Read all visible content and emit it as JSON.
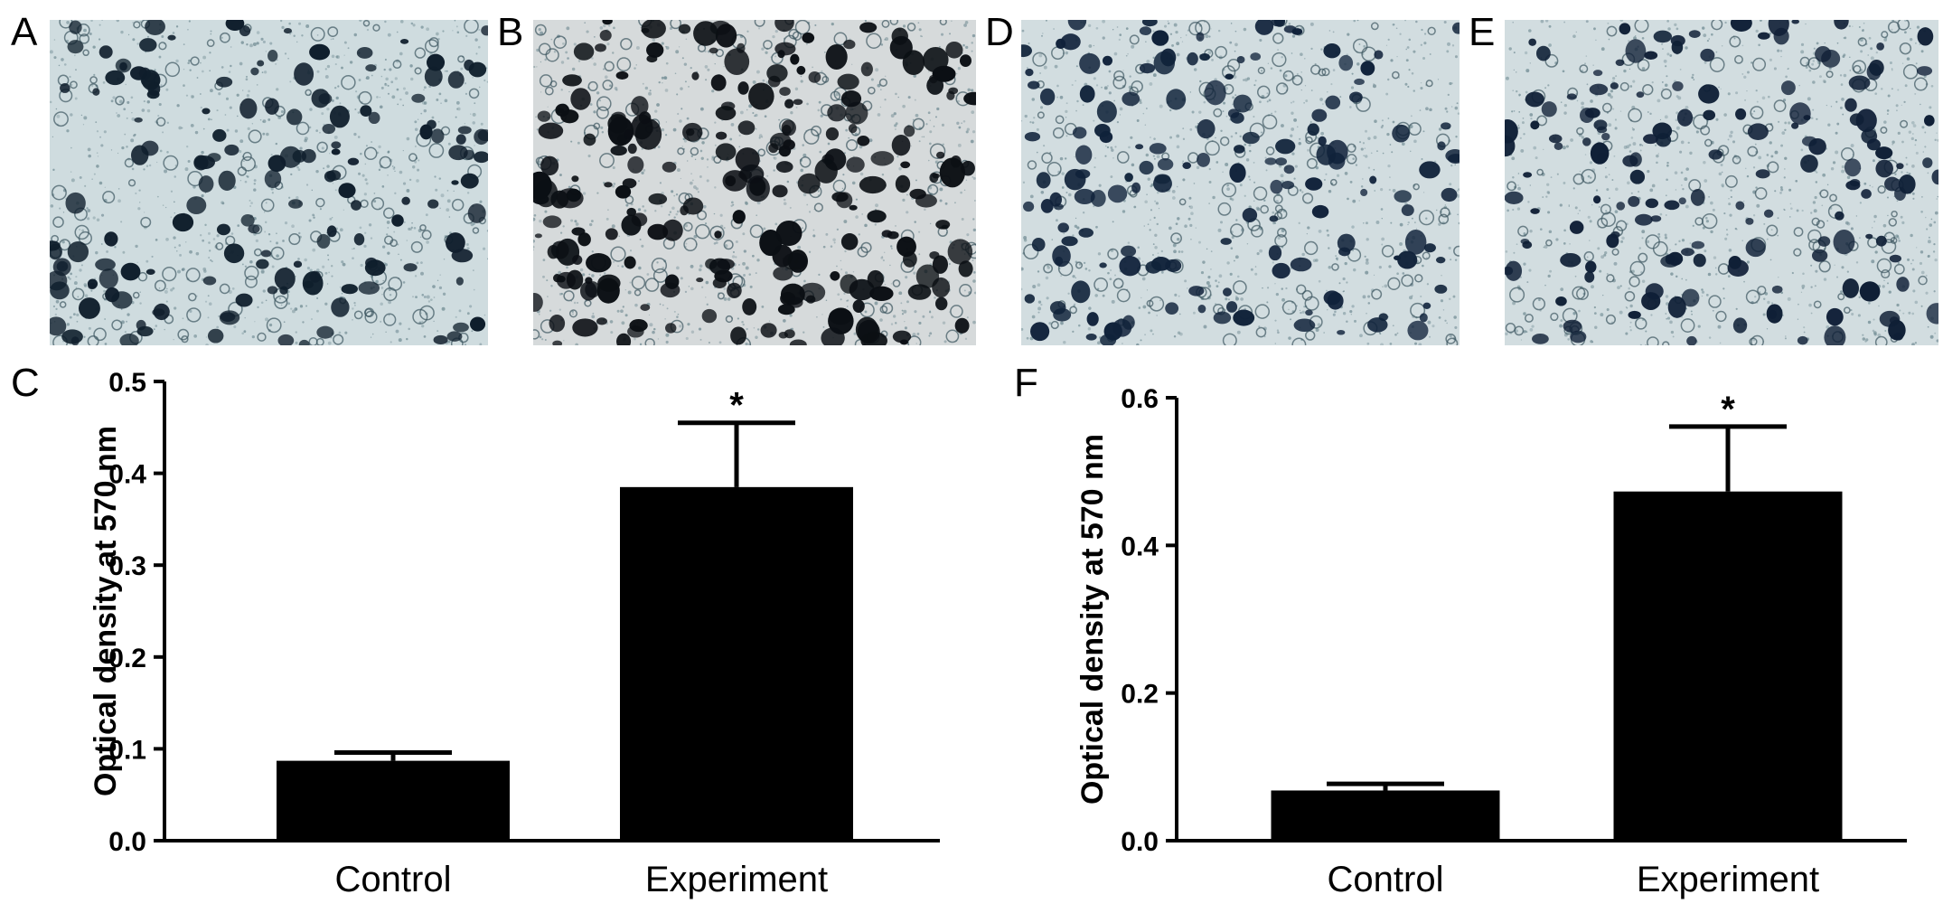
{
  "panels": {
    "letters": [
      "A",
      "B",
      "D",
      "E",
      "C",
      "F"
    ],
    "images": [
      {
        "id": "A",
        "stain_color": "#0f1e2c",
        "background_color": "#cfdcdf"
      },
      {
        "id": "B",
        "stain_color": "#0b0f14",
        "background_color": "#d6dadb"
      },
      {
        "id": "D",
        "stain_color": "#10223a",
        "background_color": "#d2dde0"
      },
      {
        "id": "E",
        "stain_color": "#0f1f36",
        "background_color": "#d2dde0"
      }
    ]
  },
  "chart_data": [
    {
      "panel": "C",
      "type": "bar",
      "categories": [
        "Control",
        "Experiment"
      ],
      "values": [
        0.087,
        0.385
      ],
      "errors": [
        0.009,
        0.07
      ],
      "significance": [
        "",
        "*"
      ],
      "ylabel": "Optical density at 570 nm",
      "xlabel": "",
      "ylim": [
        0,
        0.5
      ],
      "yticks": [
        "0.0",
        "0.1",
        "0.2",
        "0.3",
        "0.4",
        "0.5"
      ],
      "bar_color": "#000000"
    },
    {
      "panel": "F",
      "type": "bar",
      "categories": [
        "Control",
        "Experiment"
      ],
      "values": [
        0.068,
        0.473
      ],
      "errors": [
        0.009,
        0.088
      ],
      "significance": [
        "",
        "*"
      ],
      "ylabel": "Optical density at 570 nm",
      "xlabel": "",
      "ylim": [
        0,
        0.6
      ],
      "yticks": [
        "0.0",
        "0.2",
        "0.4",
        "0.6"
      ],
      "bar_color": "#000000"
    }
  ]
}
